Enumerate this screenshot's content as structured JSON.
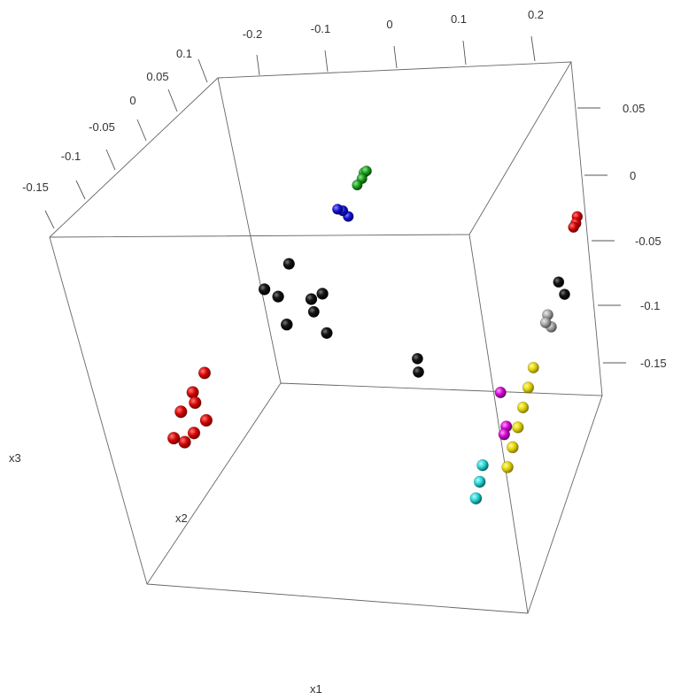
{
  "chart_data": {
    "type": "scatter",
    "title": "",
    "axis_labels": {
      "x1": "x1",
      "x2": "x2",
      "x3": "x3"
    },
    "axes": {
      "x1": {
        "ticks": [
          "-0.2",
          "-0.1",
          "0",
          "0.1",
          "0.2"
        ]
      },
      "x2": {
        "ticks": [
          "-0.15",
          "-0.1",
          "-0.05",
          "0",
          "0.05",
          "0.1"
        ]
      },
      "x3": {
        "ticks": [
          "0.05",
          "0",
          "-0.05",
          "-0.1",
          "-0.15"
        ]
      }
    },
    "grid": false,
    "legend": "none",
    "series": [
      {
        "color": "#d40000",
        "points": [
          [
            0.18,
            0.04,
            0.0
          ],
          [
            0.181,
            0.042,
            0.004
          ],
          [
            0.178,
            0.038,
            -0.002
          ],
          [
            -0.22,
            -0.12,
            -0.08
          ],
          [
            -0.21,
            -0.11,
            -0.07
          ],
          [
            -0.2,
            -0.13,
            -0.09
          ],
          [
            -0.215,
            -0.125,
            -0.1
          ],
          [
            -0.205,
            -0.115,
            -0.075
          ],
          [
            -0.19,
            -0.12,
            -0.085
          ],
          [
            -0.225,
            -0.13,
            -0.095
          ],
          [
            -0.2,
            -0.1,
            -0.06
          ]
        ]
      },
      {
        "color": "#000000",
        "points": [
          [
            -0.15,
            -0.05,
            -0.02
          ],
          [
            -0.14,
            -0.04,
            -0.03
          ],
          [
            -0.13,
            -0.03,
            -0.01
          ],
          [
            -0.12,
            -0.06,
            -0.04
          ],
          [
            -0.11,
            -0.02,
            -0.05
          ],
          [
            -0.1,
            -0.04,
            -0.03
          ],
          [
            -0.09,
            -0.03,
            -0.06
          ],
          [
            -0.08,
            -0.05,
            -0.02
          ],
          [
            0.0,
            0.0,
            -0.09
          ],
          [
            0.0,
            0.0,
            -0.1
          ],
          [
            0.16,
            0.03,
            -0.04
          ],
          [
            0.165,
            0.032,
            -0.05
          ]
        ]
      },
      {
        "color": "#1a9c1a",
        "points": [
          [
            -0.1,
            0.08,
            0.0
          ],
          [
            -0.095,
            0.082,
            0.005
          ],
          [
            -0.105,
            0.078,
            -0.004
          ],
          [
            -0.1,
            0.085,
            0.002
          ]
        ]
      },
      {
        "color": "#1010d0",
        "points": [
          [
            -0.12,
            0.07,
            -0.02
          ],
          [
            -0.115,
            0.072,
            -0.025
          ],
          [
            -0.125,
            0.068,
            -0.018
          ]
        ]
      },
      {
        "color": "#a0a0a0",
        "points": [
          [
            0.15,
            0.02,
            -0.06
          ],
          [
            0.148,
            0.018,
            -0.065
          ],
          [
            0.152,
            0.022,
            -0.07
          ]
        ]
      },
      {
        "color": "#e0d000",
        "points": [
          [
            0.14,
            0.0,
            -0.09
          ],
          [
            0.138,
            -0.01,
            -0.1
          ],
          [
            0.136,
            -0.02,
            -0.11
          ],
          [
            0.134,
            -0.03,
            -0.12
          ],
          [
            0.132,
            -0.04,
            -0.13
          ],
          [
            0.13,
            -0.05,
            -0.14
          ]
        ]
      },
      {
        "color": "#d000d0",
        "points": [
          [
            0.12,
            -0.03,
            -0.12
          ],
          [
            0.118,
            -0.032,
            -0.125
          ],
          [
            0.11,
            -0.02,
            -0.1
          ]
        ]
      },
      {
        "color": "#20d0d0",
        "points": [
          [
            0.1,
            -0.05,
            -0.14
          ],
          [
            0.098,
            -0.055,
            -0.15
          ],
          [
            0.095,
            -0.06,
            -0.16
          ]
        ]
      }
    ]
  }
}
